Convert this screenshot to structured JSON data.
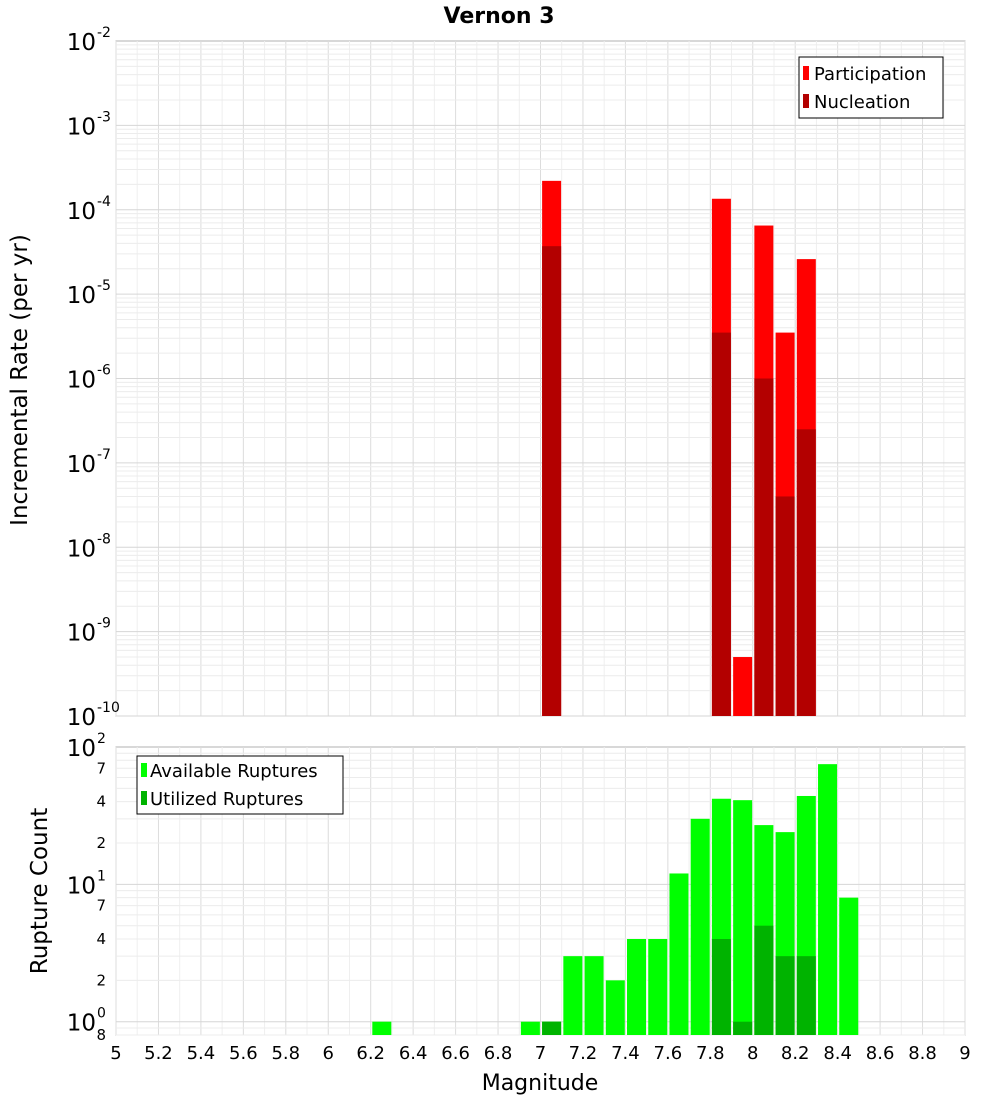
{
  "title": "Vernon 3",
  "x_axis": {
    "label": "Magnitude",
    "ticks": [
      "5",
      "5.2",
      "5.4",
      "5.6",
      "5.8",
      "6",
      "6.2",
      "6.4",
      "6.6",
      "6.8",
      "7",
      "7.2",
      "7.4",
      "7.6",
      "7.8",
      "8",
      "8.2",
      "8.4",
      "8.6",
      "8.8",
      "9"
    ]
  },
  "chart_data": [
    {
      "type": "bar",
      "title": "Vernon 3",
      "ylabel": "Incremental Rate (per yr)",
      "xlabel": "",
      "yscale": "log",
      "xlim": [
        5,
        9
      ],
      "ylim": [
        1e-10,
        0.01
      ],
      "yticks": [
        {
          "base": "10",
          "exp": "-2"
        },
        {
          "base": "10",
          "exp": "-3"
        },
        {
          "base": "10",
          "exp": "-4"
        },
        {
          "base": "10",
          "exp": "-5"
        },
        {
          "base": "10",
          "exp": "-6"
        },
        {
          "base": "10",
          "exp": "-7"
        },
        {
          "base": "10",
          "exp": "-8"
        },
        {
          "base": "10",
          "exp": "-9"
        },
        {
          "base": "10",
          "exp": "-10"
        }
      ],
      "legend": [
        {
          "label": "Participation",
          "color": "#ff0000"
        },
        {
          "label": "Nucleation",
          "color": "#b30000"
        }
      ],
      "legend_position": "top-right",
      "series": [
        {
          "name": "Participation",
          "color": "#ff0000",
          "points": [
            {
              "x": 7.05,
              "y": 0.00022
            },
            {
              "x": 7.85,
              "y": 0.000135
            },
            {
              "x": 7.95,
              "y": 5e-10
            },
            {
              "x": 8.05,
              "y": 6.5e-05
            },
            {
              "x": 8.15,
              "y": 3.5e-06
            },
            {
              "x": 8.25,
              "y": 2.6e-05
            }
          ]
        },
        {
          "name": "Nucleation",
          "color": "#b30000",
          "points": [
            {
              "x": 7.05,
              "y": 3.7e-05
            },
            {
              "x": 7.85,
              "y": 3.5e-06
            },
            {
              "x": 8.05,
              "y": 1e-06
            },
            {
              "x": 8.15,
              "y": 4e-08
            },
            {
              "x": 8.25,
              "y": 2.5e-07
            }
          ]
        }
      ]
    },
    {
      "type": "bar",
      "ylabel": "Rupture Count",
      "xlabel": "Magnitude",
      "yscale": "log",
      "xlim": [
        5,
        9
      ],
      "ylim": [
        0.8,
        100
      ],
      "major_ticks": [
        {
          "value": 100,
          "base": "10",
          "exp": "2"
        },
        {
          "value": 10,
          "base": "10",
          "exp": "1"
        },
        {
          "value": 1,
          "base": "10",
          "exp": "0"
        }
      ],
      "minor_ticks": [
        {
          "value": 70,
          "label": "7"
        },
        {
          "value": 40,
          "label": "4"
        },
        {
          "value": 20,
          "label": "2"
        },
        {
          "value": 7,
          "label": "7"
        },
        {
          "value": 4,
          "label": "4"
        },
        {
          "value": 2,
          "label": "2"
        },
        {
          "value": 0.8,
          "label": "8"
        }
      ],
      "legend": [
        {
          "label": "Available Ruptures",
          "color": "#00ff00"
        },
        {
          "label": "Utilized Ruptures",
          "color": "#00b300"
        }
      ],
      "legend_position": "top-left",
      "series": [
        {
          "name": "Available Ruptures",
          "color": "#00ff00",
          "points": [
            {
              "x": 6.25,
              "y": 1
            },
            {
              "x": 6.95,
              "y": 1
            },
            {
              "x": 7.05,
              "y": 1
            },
            {
              "x": 7.15,
              "y": 3
            },
            {
              "x": 7.25,
              "y": 3
            },
            {
              "x": 7.35,
              "y": 2
            },
            {
              "x": 7.45,
              "y": 4
            },
            {
              "x": 7.55,
              "y": 4
            },
            {
              "x": 7.65,
              "y": 12
            },
            {
              "x": 7.75,
              "y": 30
            },
            {
              "x": 7.85,
              "y": 42
            },
            {
              "x": 7.95,
              "y": 41
            },
            {
              "x": 8.05,
              "y": 27
            },
            {
              "x": 8.15,
              "y": 24
            },
            {
              "x": 8.25,
              "y": 44
            },
            {
              "x": 8.35,
              "y": 75
            },
            {
              "x": 8.45,
              "y": 8
            }
          ]
        },
        {
          "name": "Utilized Ruptures",
          "color": "#00b300",
          "points": [
            {
              "x": 7.05,
              "y": 1
            },
            {
              "x": 7.85,
              "y": 4
            },
            {
              "x": 7.95,
              "y": 1
            },
            {
              "x": 8.05,
              "y": 5
            },
            {
              "x": 8.15,
              "y": 3
            },
            {
              "x": 8.25,
              "y": 3
            }
          ]
        }
      ]
    }
  ]
}
